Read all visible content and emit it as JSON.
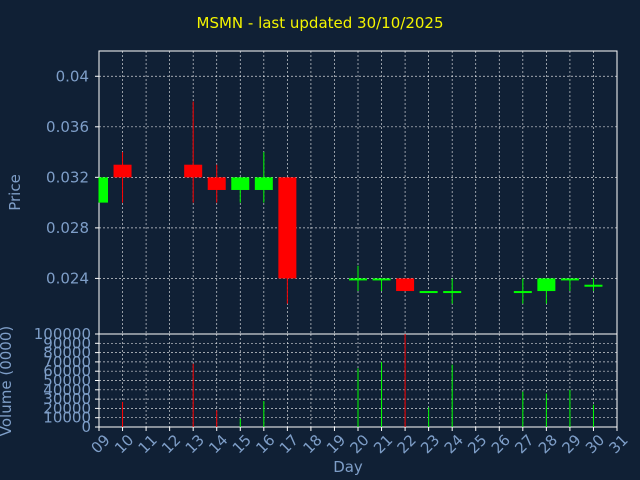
{
  "chart_data": {
    "type": "candlestick",
    "title": "MSMN - last updated 30/10/2025",
    "xlabel": "Day",
    "price_ylabel": "Price",
    "volume_ylabel": "Volume (0000)",
    "x_ticks": [
      "09",
      "10",
      "11",
      "12",
      "13",
      "14",
      "15",
      "16",
      "17",
      "18",
      "19",
      "20",
      "21",
      "22",
      "23",
      "24",
      "25",
      "26",
      "27",
      "28",
      "29",
      "30",
      "31"
    ],
    "price_ticks": [
      "0.04",
      "0.036",
      "0.032",
      "0.028",
      "0.024"
    ],
    "price_tick_values": [
      0.04,
      0.036,
      0.032,
      0.028,
      0.024
    ],
    "price_ylim": [
      0.0196,
      0.042
    ],
    "volume_ticks": [
      "100000",
      "90000",
      "80000",
      "70000",
      "60000",
      "50000",
      "40000",
      "30000",
      "20000",
      "10000",
      "0"
    ],
    "volume_tick_values": [
      100000,
      90000,
      80000,
      70000,
      60000,
      50000,
      40000,
      30000,
      20000,
      10000,
      0
    ],
    "volume_ylim": [
      0,
      100000
    ],
    "grid": true,
    "colors": {
      "up": "#00ff00",
      "down": "#ff0000",
      "grid": "#ffffff",
      "title": "#f4f400",
      "axis": "#7e9ec8",
      "background": "#102035"
    },
    "candles": [
      {
        "day": 9,
        "open": 0.03,
        "high": 0.032,
        "low": 0.03,
        "close": 0.032,
        "volume": 0
      },
      {
        "day": 10,
        "open": 0.033,
        "high": 0.034,
        "low": 0.03,
        "close": 0.032,
        "volume": 27000
      },
      {
        "day": 13,
        "open": 0.033,
        "high": 0.038,
        "low": 0.03,
        "close": 0.032,
        "volume": 68000
      },
      {
        "day": 14,
        "open": 0.032,
        "high": 0.033,
        "low": 0.03,
        "close": 0.031,
        "volume": 18000
      },
      {
        "day": 15,
        "open": 0.031,
        "high": 0.032,
        "low": 0.03,
        "close": 0.032,
        "volume": 9000
      },
      {
        "day": 16,
        "open": 0.031,
        "high": 0.034,
        "low": 0.03,
        "close": 0.032,
        "volume": 28000
      },
      {
        "day": 17,
        "open": 0.032,
        "high": 0.032,
        "low": 0.022,
        "close": 0.024,
        "volume": 0
      },
      {
        "day": 20,
        "open": 0.024,
        "high": 0.025,
        "low": 0.023,
        "close": 0.024,
        "volume": 63000
      },
      {
        "day": 21,
        "open": 0.024,
        "high": 0.024,
        "low": 0.023,
        "close": 0.024,
        "volume": 70000
      },
      {
        "day": 22,
        "open": 0.024,
        "high": 0.024,
        "low": 0.023,
        "close": 0.023,
        "volume": 100000
      },
      {
        "day": 23,
        "open": 0.023,
        "high": 0.023,
        "low": 0.023,
        "close": 0.023,
        "volume": 21000
      },
      {
        "day": 24,
        "open": 0.023,
        "high": 0.024,
        "low": 0.022,
        "close": 0.023,
        "volume": 67000
      },
      {
        "day": 27,
        "open": 0.023,
        "high": 0.024,
        "low": 0.022,
        "close": 0.023,
        "volume": 38000
      },
      {
        "day": 28,
        "open": 0.023,
        "high": 0.024,
        "low": 0.022,
        "close": 0.024,
        "volume": 36000
      },
      {
        "day": 29,
        "open": 0.024,
        "high": 0.024,
        "low": 0.023,
        "close": 0.024,
        "volume": 40000
      },
      {
        "day": 30,
        "open": 0.0234,
        "high": 0.024,
        "low": 0.023,
        "close": 0.0235,
        "volume": 24000
      }
    ]
  }
}
